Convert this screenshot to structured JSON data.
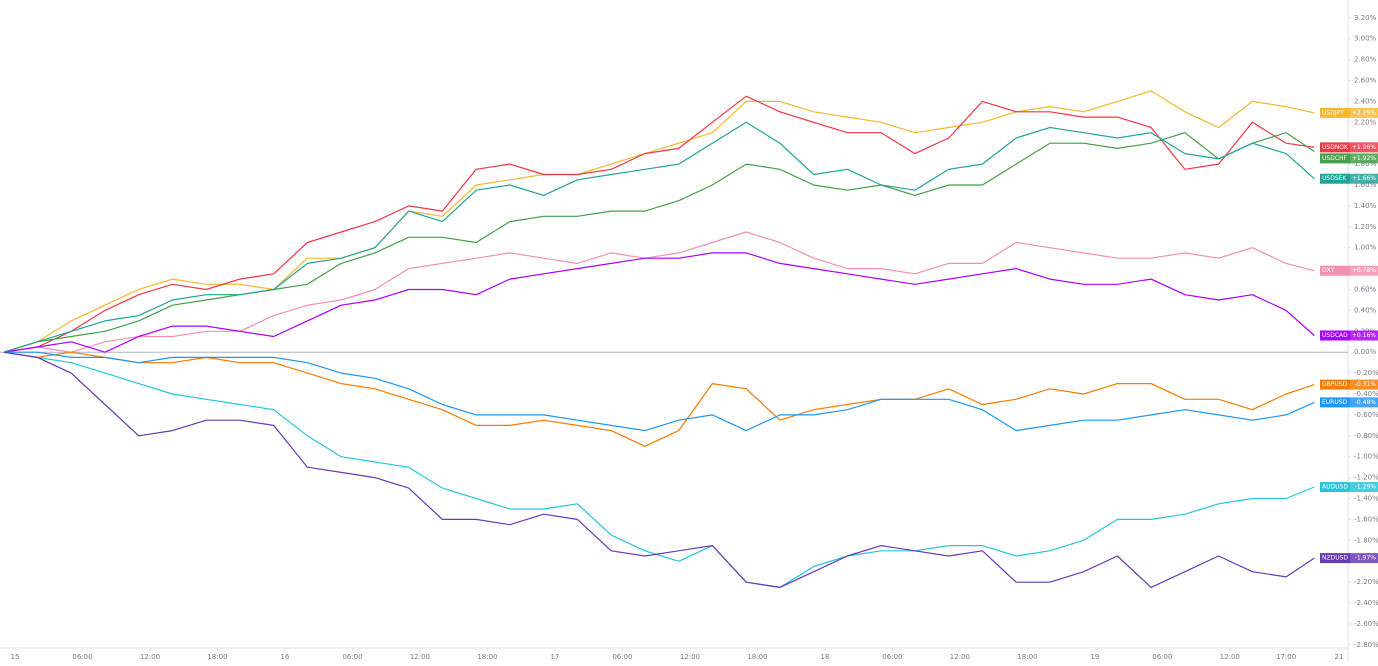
{
  "chart_data": {
    "type": "line",
    "log_scale": false,
    "grid": false,
    "x": [
      -1,
      2,
      5,
      8,
      11,
      14,
      17,
      20,
      23,
      26,
      29,
      32,
      35,
      38,
      41,
      44,
      47,
      50,
      53,
      56,
      59,
      62,
      65,
      68,
      71,
      74,
      77,
      80,
      83,
      86,
      89,
      92,
      95,
      98,
      101,
      104,
      107,
      110,
      113,
      115.5
    ],
    "xlim": [
      -1.33,
      118.5
    ],
    "xticks": [
      {
        "value": 0,
        "label": "15"
      },
      {
        "value": 6,
        "label": "06:00"
      },
      {
        "value": 12,
        "label": "12:00"
      },
      {
        "value": 18,
        "label": "18:00"
      },
      {
        "value": 24,
        "label": "16"
      },
      {
        "value": 30,
        "label": "06:00"
      },
      {
        "value": 36,
        "label": "12:00"
      },
      {
        "value": 42,
        "label": "18:00"
      },
      {
        "value": 48,
        "label": "17"
      },
      {
        "value": 54,
        "label": "06:00"
      },
      {
        "value": 60,
        "label": "12:00"
      },
      {
        "value": 66,
        "label": "18:00"
      },
      {
        "value": 72,
        "label": "18"
      },
      {
        "value": 78,
        "label": "06:00"
      },
      {
        "value": 84,
        "label": "12:00"
      },
      {
        "value": 90,
        "label": "18:00"
      },
      {
        "value": 96,
        "label": "19"
      },
      {
        "value": 102,
        "label": "06:00"
      },
      {
        "value": 108,
        "label": "12:00"
      },
      {
        "value": 113,
        "label": "17:00"
      },
      {
        "value": 117.7,
        "label": "21"
      }
    ],
    "ylim": [
      -2.83,
      3.37
    ],
    "yticks": [
      {
        "value": 3.2,
        "label": "3.20%"
      },
      {
        "value": 3.0,
        "label": "3.00%"
      },
      {
        "value": 2.8,
        "label": "2.80%"
      },
      {
        "value": 2.6,
        "label": "2.60%"
      },
      {
        "value": 2.4,
        "label": "2.40%"
      },
      {
        "value": 2.2,
        "label": "2.20%"
      },
      {
        "value": 1.8,
        "label": "1.80%"
      },
      {
        "value": 1.6,
        "label": "1.60%"
      },
      {
        "value": 1.4,
        "label": "1.40%"
      },
      {
        "value": 1.2,
        "label": "1.20%"
      },
      {
        "value": 1.0,
        "label": "1.00%"
      },
      {
        "value": 0.6,
        "label": "0.60%"
      },
      {
        "value": 0.4,
        "label": "0.40%"
      },
      {
        "value": 0.2,
        "label": "0.20%"
      },
      {
        "value": 0,
        "label": "0.00%"
      },
      {
        "value": -0.2,
        "label": "-0.20%"
      },
      {
        "value": -0.4,
        "label": "-0.40%"
      },
      {
        "value": -0.6,
        "label": "-0.60%"
      },
      {
        "value": -0.8,
        "label": "-0.80%"
      },
      {
        "value": -1.0,
        "label": "-1.00%"
      },
      {
        "value": -1.2,
        "label": "-1.20%"
      },
      {
        "value": -1.4,
        "label": "-1.40%"
      },
      {
        "value": -1.6,
        "label": "-1.60%"
      },
      {
        "value": -1.8,
        "label": "-1.80%"
      },
      {
        "value": -2.2,
        "label": "-2.20%"
      },
      {
        "value": -2.4,
        "label": "-2.40%"
      },
      {
        "value": -2.6,
        "label": "-2.60%"
      },
      {
        "value": -2.8,
        "label": "-2.80%"
      }
    ],
    "series": [
      {
        "name": "USDJPY",
        "color": "#f5b82e",
        "end_label": "+2.29%",
        "values": [
          0,
          0.1,
          0.3,
          0.45,
          0.6,
          0.7,
          0.65,
          0.65,
          0.6,
          0.9,
          0.9,
          1.0,
          1.35,
          1.3,
          1.6,
          1.65,
          1.7,
          1.7,
          1.8,
          1.9,
          2.0,
          2.1,
          2.4,
          2.4,
          2.3,
          2.25,
          2.2,
          2.1,
          2.15,
          2.2,
          2.3,
          2.35,
          2.3,
          2.4,
          2.5,
          2.3,
          2.15,
          2.4,
          2.35,
          2.29
        ]
      },
      {
        "name": "USDNOK",
        "color": "#f23645",
        "end_label": "+1.96%",
        "values": [
          0,
          0.05,
          0.2,
          0.4,
          0.55,
          0.65,
          0.6,
          0.7,
          0.75,
          1.05,
          1.15,
          1.25,
          1.4,
          1.35,
          1.75,
          1.8,
          1.7,
          1.7,
          1.75,
          1.9,
          1.95,
          2.2,
          2.45,
          2.3,
          2.2,
          2.1,
          2.1,
          1.9,
          2.05,
          2.4,
          2.3,
          2.3,
          2.25,
          2.25,
          2.15,
          1.75,
          1.8,
          2.2,
          2.0,
          1.96
        ]
      },
      {
        "name": "USDCHF",
        "color": "#43a047",
        "end_label": "+1.92%",
        "values": [
          0,
          0.1,
          0.15,
          0.2,
          0.3,
          0.45,
          0.5,
          0.55,
          0.6,
          0.65,
          0.85,
          0.95,
          1.1,
          1.1,
          1.05,
          1.25,
          1.3,
          1.3,
          1.35,
          1.35,
          1.45,
          1.6,
          1.8,
          1.75,
          1.6,
          1.55,
          1.6,
          1.5,
          1.6,
          1.6,
          1.8,
          2.0,
          2.0,
          1.95,
          2.0,
          2.1,
          1.85,
          2.0,
          2.1,
          1.92
        ]
      },
      {
        "name": "USDSEK",
        "color": "#22a39a",
        "end_label": "+1.66%",
        "values": [
          0,
          0.1,
          0.2,
          0.3,
          0.35,
          0.5,
          0.55,
          0.55,
          0.6,
          0.85,
          0.9,
          1.0,
          1.35,
          1.25,
          1.55,
          1.6,
          1.5,
          1.65,
          1.7,
          1.75,
          1.8,
          2.0,
          2.2,
          2.0,
          1.7,
          1.75,
          1.6,
          1.55,
          1.75,
          1.8,
          2.05,
          2.15,
          2.1,
          2.05,
          2.1,
          1.9,
          1.85,
          2.0,
          1.9,
          1.66
        ]
      },
      {
        "name": "DXY",
        "color": "#f48fb1",
        "end_label": "+0.78%",
        "values": [
          0,
          0.05,
          0.0,
          0.1,
          0.15,
          0.15,
          0.2,
          0.2,
          0.35,
          0.45,
          0.5,
          0.6,
          0.8,
          0.85,
          0.9,
          0.95,
          0.9,
          0.85,
          0.95,
          0.9,
          0.95,
          1.05,
          1.15,
          1.05,
          0.9,
          0.8,
          0.8,
          0.75,
          0.85,
          0.85,
          1.05,
          1.0,
          0.95,
          0.9,
          0.9,
          0.95,
          0.9,
          1.0,
          0.85,
          0.78
        ]
      },
      {
        "name": "USDCAD",
        "color": "#aa00ff",
        "end_label": "+0.16%",
        "values": [
          0,
          0.05,
          0.1,
          0.0,
          0.15,
          0.25,
          0.25,
          0.2,
          0.15,
          0.3,
          0.45,
          0.5,
          0.6,
          0.6,
          0.55,
          0.7,
          0.75,
          0.8,
          0.85,
          0.9,
          0.9,
          0.95,
          0.95,
          0.85,
          0.8,
          0.75,
          0.7,
          0.65,
          0.7,
          0.75,
          0.8,
          0.7,
          0.65,
          0.65,
          0.7,
          0.55,
          0.5,
          0.55,
          0.4,
          0.16
        ]
      },
      {
        "name": "GBPUSD",
        "color": "#f57c00",
        "end_label": "-0.31%",
        "values": [
          0,
          -0.05,
          0.0,
          -0.05,
          -0.1,
          -0.1,
          -0.05,
          -0.1,
          -0.1,
          -0.2,
          -0.3,
          -0.35,
          -0.45,
          -0.55,
          -0.7,
          -0.7,
          -0.65,
          -0.7,
          -0.75,
          -0.9,
          -0.75,
          -0.3,
          -0.35,
          -0.65,
          -0.55,
          -0.5,
          -0.45,
          -0.45,
          -0.35,
          -0.5,
          -0.45,
          -0.35,
          -0.4,
          -0.3,
          -0.3,
          -0.45,
          -0.45,
          -0.55,
          -0.4,
          -0.31
        ]
      },
      {
        "name": "EURUSD",
        "color": "#2196f3",
        "end_label": "-0.48%",
        "values": [
          0,
          0.0,
          -0.05,
          -0.05,
          -0.1,
          -0.05,
          -0.05,
          -0.05,
          -0.05,
          -0.1,
          -0.2,
          -0.25,
          -0.35,
          -0.5,
          -0.6,
          -0.6,
          -0.6,
          -0.65,
          -0.7,
          -0.75,
          -0.65,
          -0.6,
          -0.75,
          -0.6,
          -0.6,
          -0.55,
          -0.45,
          -0.45,
          -0.45,
          -0.55,
          -0.75,
          -0.7,
          -0.65,
          -0.65,
          -0.6,
          -0.55,
          -0.6,
          -0.65,
          -0.6,
          -0.48
        ]
      },
      {
        "name": "AUDUSD",
        "color": "#26c6da",
        "end_label": "-1.29%",
        "values": [
          0,
          -0.05,
          -0.1,
          -0.2,
          -0.3,
          -0.4,
          -0.45,
          -0.5,
          -0.55,
          -0.8,
          -1.0,
          -1.05,
          -1.1,
          -1.3,
          -1.4,
          -1.5,
          -1.5,
          -1.45,
          -1.75,
          -1.9,
          -2.0,
          -1.85,
          -2.2,
          -2.25,
          -2.05,
          -1.95,
          -1.9,
          -1.9,
          -1.85,
          -1.85,
          -1.95,
          -1.9,
          -1.8,
          -1.6,
          -1.6,
          -1.55,
          -1.45,
          -1.4,
          -1.4,
          -1.29
        ]
      },
      {
        "name": "NZDUSD",
        "color": "#673ab7",
        "end_label": "-1.97%",
        "values": [
          0,
          -0.05,
          -0.2,
          -0.5,
          -0.8,
          -0.75,
          -0.65,
          -0.65,
          -0.7,
          -1.1,
          -1.15,
          -1.2,
          -1.3,
          -1.6,
          -1.6,
          -1.65,
          -1.55,
          -1.6,
          -1.9,
          -1.95,
          -1.9,
          -1.85,
          -2.2,
          -2.25,
          -2.1,
          -1.95,
          -1.85,
          -1.9,
          -1.95,
          -1.9,
          -2.2,
          -2.2,
          -2.1,
          -1.95,
          -2.25,
          -2.1,
          -1.95,
          -2.1,
          -2.15,
          -1.97
        ]
      }
    ]
  }
}
